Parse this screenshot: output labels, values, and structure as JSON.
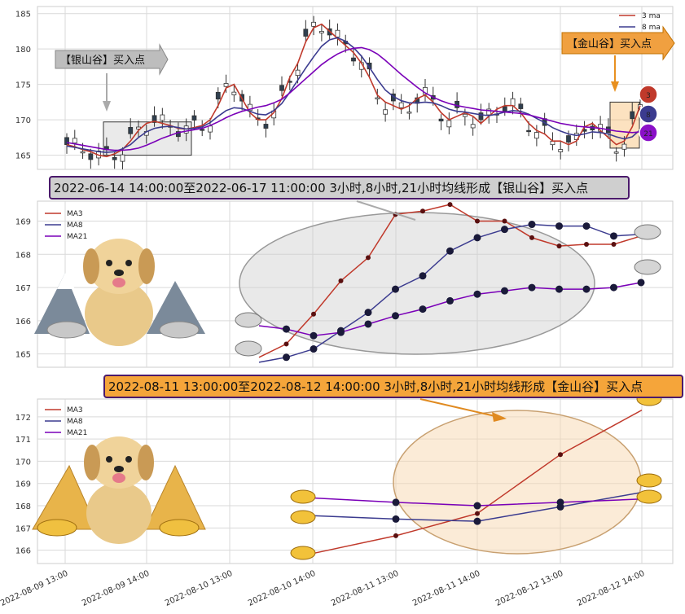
{
  "colors": {
    "ma3": "#c0392b",
    "ma8": "#3b3b8f",
    "ma21": "#7a00b8",
    "grid": "#d9d9d9",
    "silver_box": "#d0d0d0",
    "gold_box": "#f5a030"
  },
  "top": {
    "legend": [
      "3 ma",
      "8 ma"
    ],
    "silver_tag": "【银山谷】买入点",
    "gold_tag": "【金山谷】买入点",
    "badges": [
      "3",
      "8",
      "21"
    ]
  },
  "mid": {
    "banner": "2022-06-14 14:00:00至2022-06-17 11:00:00 3小时,8小时,21小时均线形成【银山谷】买入点",
    "legend": [
      "MA3",
      "MA8",
      "MA21"
    ]
  },
  "bot": {
    "banner": "2022-08-11 13:00:00至2022-08-12 14:00:00 3小时,8小时,21小时均线形成【金山谷】买入点",
    "legend": [
      "MA3",
      "MA8",
      "MA21"
    ]
  },
  "chart_data": [
    {
      "type": "line",
      "ylim": [
        163,
        186
      ],
      "y_ticks": [
        165,
        170,
        175,
        180,
        185
      ],
      "grid": true,
      "legend_position": "top-right",
      "series": [
        {
          "name": "3 ma",
          "values": [
            166.5,
            166.2,
            165.8,
            165.5,
            165.0,
            164.8,
            165.2,
            165.8,
            167,
            168.5,
            169.5,
            169.8,
            169.5,
            169.2,
            168.8,
            168.7,
            168.9,
            169.2,
            170,
            172,
            174.5,
            175,
            173,
            171,
            170,
            170,
            171,
            173,
            176,
            178,
            181,
            183,
            183.5,
            182.5,
            181.5,
            180.5,
            179.5,
            178,
            176,
            173.5,
            172.5,
            172,
            171.5,
            172,
            173,
            173.5,
            172.5,
            171,
            170,
            170.5,
            171,
            170.5,
            169.5,
            170.5,
            171.5,
            172,
            172,
            171,
            169.5,
            168.5,
            168,
            167,
            167,
            166.5,
            167,
            169,
            169.5,
            168.5,
            167.5,
            166.5,
            167,
            169,
            172
          ]
        },
        {
          "name": "8 ma",
          "values": [
            166.3,
            166.1,
            165.9,
            165.7,
            165.5,
            165.4,
            165.5,
            165.9,
            166.5,
            167.5,
            168.3,
            168.8,
            169,
            169.1,
            168.9,
            168.7,
            168.8,
            169,
            169.6,
            170.5,
            171.3,
            171.7,
            171.6,
            171.2,
            170.8,
            170.7,
            171.3,
            172.3,
            173.9,
            175.6,
            177.3,
            178.9,
            180.4,
            181.3,
            181.6,
            181.1,
            180.2,
            179,
            177.4,
            175.7,
            174.2,
            173.3,
            172.7,
            172.4,
            172.4,
            172.5,
            172.4,
            172,
            171.5,
            171.2,
            171.1,
            170.9,
            170.7,
            170.6,
            170.8,
            171.1,
            171.3,
            171.2,
            170.8,
            170.2,
            169.6,
            168.9,
            168.4,
            168,
            167.8,
            168,
            168.3,
            168.2,
            168,
            167.6,
            167.3,
            167.6,
            168.6
          ]
        },
        {
          "name": "21 ma",
          "values": [
            166.8,
            166.6,
            166.4,
            166.2,
            166,
            165.8,
            165.7,
            165.7,
            165.8,
            166,
            166.4,
            166.9,
            167.4,
            167.8,
            168.2,
            168.4,
            168.6,
            168.8,
            169.2,
            169.7,
            170.3,
            170.8,
            171.2,
            171.5,
            171.8,
            172,
            172.4,
            172.9,
            173.8,
            174.8,
            175.8,
            176.8,
            177.8,
            178.6,
            179.3,
            179.8,
            180.1,
            180.2,
            179.9,
            179.3,
            178.4,
            177.4,
            176.4,
            175.5,
            174.6,
            173.8,
            173.2,
            172.7,
            172.3,
            172,
            171.8,
            171.6,
            171.4,
            171.3,
            171.2,
            171.1,
            171,
            170.9,
            170.7,
            170.4,
            170.1,
            169.8,
            169.5,
            169.3,
            169.1,
            169,
            168.9,
            168.8,
            168.6,
            168.4,
            168.3,
            168.2,
            168.3
          ]
        }
      ]
    },
    {
      "type": "line",
      "ylim": [
        164.6,
        169.6
      ],
      "y_ticks": [
        165,
        166,
        167,
        168,
        169
      ],
      "x": [
        0,
        1,
        2,
        3,
        4,
        5,
        6,
        7,
        8,
        9,
        10,
        11,
        12,
        13,
        14
      ],
      "grid": true,
      "legend_position": "top-left",
      "series": [
        {
          "name": "MA3",
          "values": [
            164.9,
            165.3,
            166.2,
            167.2,
            167.9,
            169.2,
            169.3,
            169.5,
            169.0,
            169.0,
            168.5,
            168.25,
            168.3,
            168.3,
            168.55
          ]
        },
        {
          "name": "MA8",
          "values": [
            164.75,
            164.9,
            165.15,
            165.7,
            166.25,
            166.95,
            167.35,
            168.1,
            168.5,
            168.75,
            168.9,
            168.85,
            168.85,
            168.55,
            168.6
          ]
        },
        {
          "name": "MA21",
          "values": [
            165.85,
            165.75,
            165.55,
            165.65,
            165.9,
            166.15,
            166.35,
            166.6,
            166.8,
            166.9,
            167.0,
            166.95,
            166.95,
            167.0,
            167.15
          ]
        }
      ]
    },
    {
      "type": "line",
      "ylim": [
        165.4,
        172.8
      ],
      "y_ticks": [
        166,
        167,
        168,
        169,
        170,
        171,
        172
      ],
      "x_ticks": [
        "2022-08-09 13:00",
        "2022-08-09 14:00",
        "2022-08-10 13:00",
        "2022-08-10 14:00",
        "2022-08-11 13:00",
        "2022-08-11 14:00",
        "2022-08-12 13:00",
        "2022-08-12 14:00"
      ],
      "grid": true,
      "legend_position": "top-left",
      "series": [
        {
          "name": "MA3",
          "x": [
            "2022-08-10 14:00",
            "2022-08-11 13:00",
            "2022-08-11 14:00",
            "2022-08-12 13:00",
            "2022-08-12 14:00"
          ],
          "values": [
            165.85,
            166.65,
            167.65,
            170.3,
            172.3
          ]
        },
        {
          "name": "MA8",
          "x": [
            "2022-08-10 14:00",
            "2022-08-11 13:00",
            "2022-08-11 14:00",
            "2022-08-12 13:00",
            "2022-08-12 14:00"
          ],
          "values": [
            167.55,
            167.4,
            167.3,
            167.95,
            168.6
          ]
        },
        {
          "name": "MA21",
          "x": [
            "2022-08-10 14:00",
            "2022-08-11 13:00",
            "2022-08-11 14:00",
            "2022-08-12 13:00",
            "2022-08-12 14:00"
          ],
          "values": [
            168.35,
            168.15,
            168.0,
            168.15,
            168.3
          ]
        }
      ]
    }
  ]
}
